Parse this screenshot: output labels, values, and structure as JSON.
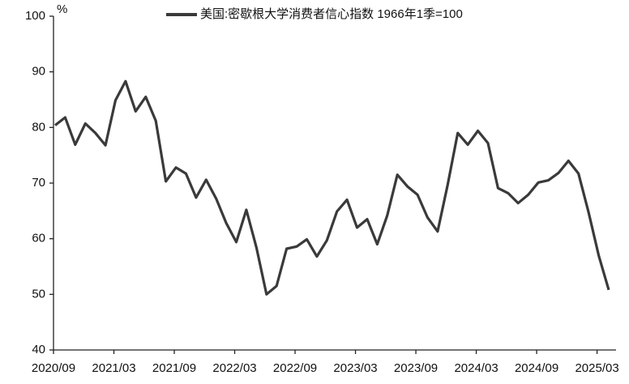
{
  "chart_data": {
    "type": "line",
    "y_unit": "%",
    "categories": [
      "2020/09",
      null,
      null,
      null,
      null,
      null,
      "2021/03",
      null,
      null,
      null,
      null,
      null,
      "2021/09",
      null,
      null,
      null,
      null,
      null,
      "2022/03",
      null,
      null,
      null,
      null,
      null,
      "2022/09",
      null,
      null,
      null,
      null,
      null,
      "2023/03",
      null,
      null,
      null,
      null,
      null,
      "2023/09",
      null,
      null,
      null,
      null,
      null,
      "2024/03",
      null,
      null,
      null,
      null,
      null,
      "2024/09",
      null,
      null,
      null,
      null,
      null,
      "2025/03",
      null
    ],
    "series": [
      {
        "name": "美国:密歇根大学消费者信心指数 1966年1季=100",
        "color": "#3a3a3a",
        "values": [
          80.4,
          81.8,
          76.9,
          80.7,
          79.0,
          76.8,
          84.9,
          88.3,
          82.9,
          85.5,
          81.2,
          70.3,
          72.8,
          71.7,
          67.4,
          70.6,
          67.2,
          62.8,
          59.4,
          65.2,
          58.4,
          50.0,
          51.5,
          58.2,
          58.6,
          59.9,
          56.8,
          59.7,
          64.9,
          67.0,
          62.0,
          63.5,
          59.0,
          64.2,
          71.5,
          69.4,
          67.9,
          63.8,
          61.3,
          69.7,
          79.0,
          76.9,
          79.4,
          77.2,
          69.1,
          68.2,
          66.4,
          67.9,
          70.1,
          70.5,
          71.8,
          74.0,
          71.7,
          64.7,
          57.0,
          50.8
        ]
      }
    ],
    "ylim": [
      40,
      100
    ],
    "yticks": [
      40,
      50,
      60,
      70,
      80,
      90,
      100
    ],
    "grid": false
  }
}
